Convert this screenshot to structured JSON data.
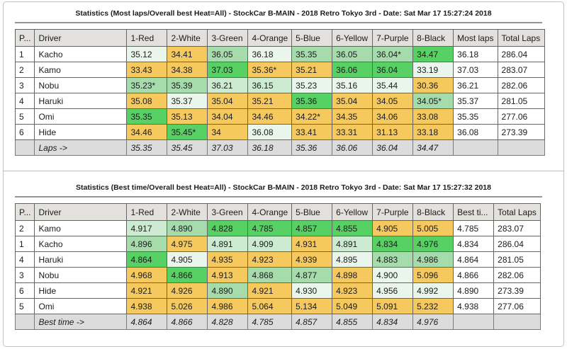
{
  "palette": {
    "gray": "#e3e1de",
    "red": "#f2636e",
    "white": "#ffffff",
    "green": "#53c573",
    "orange": "#f0845a",
    "blue": "#72c2ef",
    "yellow": "#f7df4f",
    "purple": "#de6fd3",
    "amber": "#f6c95f",
    "green1": "#eaf6eb",
    "green2": "#cdebd1",
    "green3": "#a6dbac",
    "green4": "#57d164",
    "footerbg": "#dcdcdc"
  },
  "tables": [
    {
      "title": "Statistics (Most laps/Overall best Heat=All) - StockCar B-MAIN - 2018 Retro Tokyo 3rd - Date: Sat Mar 17 15:27:24 2018",
      "headers": [
        {
          "label": "P...",
          "bg": "gray"
        },
        {
          "label": "Driver",
          "bg": "gray"
        },
        {
          "label": "1-Red",
          "bg": "red"
        },
        {
          "label": "2-White",
          "bg": "white"
        },
        {
          "label": "3-Green",
          "bg": "green"
        },
        {
          "label": "4-Orange",
          "bg": "orange"
        },
        {
          "label": "5-Blue",
          "bg": "blue"
        },
        {
          "label": "6-Yellow",
          "bg": "yellow"
        },
        {
          "label": "7-Purple",
          "bg": "purple"
        },
        {
          "label": "8-Black",
          "bg": "gray"
        },
        {
          "label": "Most laps",
          "bg": "gray"
        },
        {
          "label": "Total Laps",
          "bg": "gray",
          "bold": true,
          "sorted": true
        }
      ],
      "rows": [
        {
          "pos": "1",
          "driver": "Kacho",
          "heats": [
            {
              "v": "35.12",
              "c": "g1"
            },
            {
              "v": "34.41",
              "c": "a"
            },
            {
              "v": "36.05",
              "c": "g3"
            },
            {
              "v": "36.18",
              "c": "g1",
              "b": true
            },
            {
              "v": "35.35",
              "c": "g3"
            },
            {
              "v": "36.05",
              "c": "g3"
            },
            {
              "v": "36.04*",
              "c": "g3"
            },
            {
              "v": "34.47",
              "c": "g4",
              "b": true
            }
          ],
          "summary": {
            "v": "36.18"
          },
          "total": {
            "v": "286.04",
            "b": true
          }
        },
        {
          "pos": "2",
          "driver": "Kamo",
          "heats": [
            {
              "v": "33.43",
              "c": "a"
            },
            {
              "v": "34.38",
              "c": "a"
            },
            {
              "v": "37.03",
              "c": "g4",
              "b": true
            },
            {
              "v": "35.36*",
              "c": "a"
            },
            {
              "v": "35.21",
              "c": "a"
            },
            {
              "v": "36.06",
              "c": "g4",
              "b": true
            },
            {
              "v": "36.04",
              "c": "g4",
              "b": true
            },
            {
              "v": "33.19",
              "c": "g1"
            }
          ],
          "summary": {
            "v": "37.03",
            "b": true
          },
          "total": {
            "v": "283.07"
          }
        },
        {
          "pos": "3",
          "driver": "Nobu",
          "heats": [
            {
              "v": "35.23*",
              "c": "g3"
            },
            {
              "v": "35.39",
              "c": "g3"
            },
            {
              "v": "36.21",
              "c": "g2"
            },
            {
              "v": "36.15",
              "c": "g2"
            },
            {
              "v": "35.23",
              "c": "g1"
            },
            {
              "v": "35.16",
              "c": "g1"
            },
            {
              "v": "35.44",
              "c": "g1"
            },
            {
              "v": "30.36",
              "c": "a"
            }
          ],
          "summary": {
            "v": "36.21"
          },
          "total": {
            "v": "282.06"
          }
        },
        {
          "pos": "4",
          "driver": "Haruki",
          "heats": [
            {
              "v": "35.08",
              "c": "a"
            },
            {
              "v": "35.37",
              "c": "g1"
            },
            {
              "v": "35.04",
              "c": "a"
            },
            {
              "v": "35.21",
              "c": "a"
            },
            {
              "v": "35.36",
              "c": "g4",
              "b": true
            },
            {
              "v": "35.04",
              "c": "a"
            },
            {
              "v": "34.05",
              "c": "a"
            },
            {
              "v": "34.05*",
              "c": "g3"
            }
          ],
          "summary": {
            "v": "35.37"
          },
          "total": {
            "v": "281.05"
          }
        },
        {
          "pos": "5",
          "driver": "Omi",
          "heats": [
            {
              "v": "35.35",
              "c": "g4",
              "b": true
            },
            {
              "v": "35.13",
              "c": "a"
            },
            {
              "v": "34.04",
              "c": "a"
            },
            {
              "v": "34.46",
              "c": "a"
            },
            {
              "v": "34.22*",
              "c": "a"
            },
            {
              "v": "34.35",
              "c": "a"
            },
            {
              "v": "34.06",
              "c": "a"
            },
            {
              "v": "33.08",
              "c": "a"
            }
          ],
          "summary": {
            "v": "35.35"
          },
          "total": {
            "v": "277.06"
          }
        },
        {
          "pos": "6",
          "driver": "Hide",
          "heats": [
            {
              "v": "34.46",
              "c": "a"
            },
            {
              "v": "35.45*",
              "c": "g4",
              "b": true
            },
            {
              "v": "34",
              "c": "a"
            },
            {
              "v": "36.08",
              "c": "g1"
            },
            {
              "v": "33.41",
              "c": "a"
            },
            {
              "v": "33.31",
              "c": "a"
            },
            {
              "v": "31.13",
              "c": "a"
            },
            {
              "v": "33.18",
              "c": "a"
            }
          ],
          "summary": {
            "v": "36.08"
          },
          "total": {
            "v": "273.39"
          }
        }
      ],
      "footer": {
        "label": "Laps ->",
        "values": [
          {
            "v": "35.35"
          },
          {
            "v": "35.45"
          },
          {
            "v": "37.03",
            "b": true
          },
          {
            "v": "36.18"
          },
          {
            "v": "35.36"
          },
          {
            "v": "36.06"
          },
          {
            "v": "36.04"
          },
          {
            "v": "34.47"
          }
        ]
      }
    },
    {
      "title": "Statistics (Best time/Overall best Heat=All) - StockCar B-MAIN - 2018 Retro Tokyo 3rd - Date: Sat Mar 17 15:27:32 2018",
      "headers": [
        {
          "label": "P...",
          "bg": "gray"
        },
        {
          "label": "Driver",
          "bg": "gray"
        },
        {
          "label": "1-Red",
          "bg": "red"
        },
        {
          "label": "2-White",
          "bg": "white"
        },
        {
          "label": "3-Green",
          "bg": "green"
        },
        {
          "label": "4-Orange",
          "bg": "orange"
        },
        {
          "label": "5-Blue",
          "bg": "blue"
        },
        {
          "label": "6-Yellow",
          "bg": "yellow"
        },
        {
          "label": "7-Purple",
          "bg": "purple"
        },
        {
          "label": "8-Black",
          "bg": "gray"
        },
        {
          "label": "Best ti...",
          "bg": "gray",
          "bold": true,
          "sorted": true
        },
        {
          "label": "Total Laps",
          "bg": "gray"
        }
      ],
      "rows": [
        {
          "pos": "2",
          "driver": "Kamo",
          "heats": [
            {
              "v": "4.917",
              "c": "g2"
            },
            {
              "v": "4.890",
              "c": "g3"
            },
            {
              "v": "4.828",
              "c": "g4",
              "b": true
            },
            {
              "v": "4.785",
              "c": "g4",
              "b": true
            },
            {
              "v": "4.857",
              "c": "g4",
              "b": true
            },
            {
              "v": "4.855",
              "c": "g4",
              "b": true
            },
            {
              "v": "4.905",
              "c": "a"
            },
            {
              "v": "5.005",
              "c": "a"
            }
          ],
          "summary": {
            "v": "4.785",
            "b": true
          },
          "total": {
            "v": "283.07"
          }
        },
        {
          "pos": "1",
          "driver": "Kacho",
          "heats": [
            {
              "v": "4.896",
              "c": "g3"
            },
            {
              "v": "4.975",
              "c": "a"
            },
            {
              "v": "4.891",
              "c": "g2"
            },
            {
              "v": "4.909",
              "c": "g2"
            },
            {
              "v": "4.931",
              "c": "a"
            },
            {
              "v": "4.891",
              "c": "g2"
            },
            {
              "v": "4.834",
              "c": "g4",
              "b": true
            },
            {
              "v": "4.976",
              "c": "g4",
              "b": true
            }
          ],
          "summary": {
            "v": "4.834"
          },
          "total": {
            "v": "286.04",
            "b": true
          }
        },
        {
          "pos": "4",
          "driver": "Haruki",
          "heats": [
            {
              "v": "4.864",
              "c": "g4",
              "b": true
            },
            {
              "v": "4.905",
              "c": "g1"
            },
            {
              "v": "4.935",
              "c": "a"
            },
            {
              "v": "4.923",
              "c": "a"
            },
            {
              "v": "4.939",
              "c": "a"
            },
            {
              "v": "4.895",
              "c": "g1"
            },
            {
              "v": "4.883",
              "c": "g3"
            },
            {
              "v": "4.986",
              "c": "g3"
            }
          ],
          "summary": {
            "v": "4.864"
          },
          "total": {
            "v": "281.05"
          }
        },
        {
          "pos": "3",
          "driver": "Nobu",
          "heats": [
            {
              "v": "4.968",
              "c": "a"
            },
            {
              "v": "4.866",
              "c": "g4",
              "b": true
            },
            {
              "v": "4.913",
              "c": "a"
            },
            {
              "v": "4.868",
              "c": "g3"
            },
            {
              "v": "4.877",
              "c": "g3"
            },
            {
              "v": "4.898",
              "c": "a"
            },
            {
              "v": "4.900",
              "c": "g1"
            },
            {
              "v": "5.096",
              "c": "a"
            }
          ],
          "summary": {
            "v": "4.866"
          },
          "total": {
            "v": "282.06"
          }
        },
        {
          "pos": "6",
          "driver": "Hide",
          "heats": [
            {
              "v": "4.921",
              "c": "a"
            },
            {
              "v": "4.926",
              "c": "a"
            },
            {
              "v": "4.890",
              "c": "g3"
            },
            {
              "v": "4.921",
              "c": "a"
            },
            {
              "v": "4.930",
              "c": "g1"
            },
            {
              "v": "4.923",
              "c": "a"
            },
            {
              "v": "4.956",
              "c": "g1"
            },
            {
              "v": "4.992",
              "c": "g1"
            }
          ],
          "summary": {
            "v": "4.890"
          },
          "total": {
            "v": "273.39"
          }
        },
        {
          "pos": "5",
          "driver": "Omi",
          "heats": [
            {
              "v": "4.938",
              "c": "a"
            },
            {
              "v": "5.026",
              "c": "a"
            },
            {
              "v": "4.986",
              "c": "a"
            },
            {
              "v": "5.064",
              "c": "a"
            },
            {
              "v": "5.134",
              "c": "a"
            },
            {
              "v": "5.049",
              "c": "a"
            },
            {
              "v": "5.091",
              "c": "a"
            },
            {
              "v": "5.232",
              "c": "a"
            }
          ],
          "summary": {
            "v": "4.938"
          },
          "total": {
            "v": "277.06"
          }
        }
      ],
      "footer": {
        "label": "Best time ->",
        "values": [
          {
            "v": "4.864"
          },
          {
            "v": "4.866"
          },
          {
            "v": "4.828"
          },
          {
            "v": "4.785",
            "b": true
          },
          {
            "v": "4.857"
          },
          {
            "v": "4.855"
          },
          {
            "v": "4.834"
          },
          {
            "v": "4.976"
          }
        ]
      }
    }
  ]
}
